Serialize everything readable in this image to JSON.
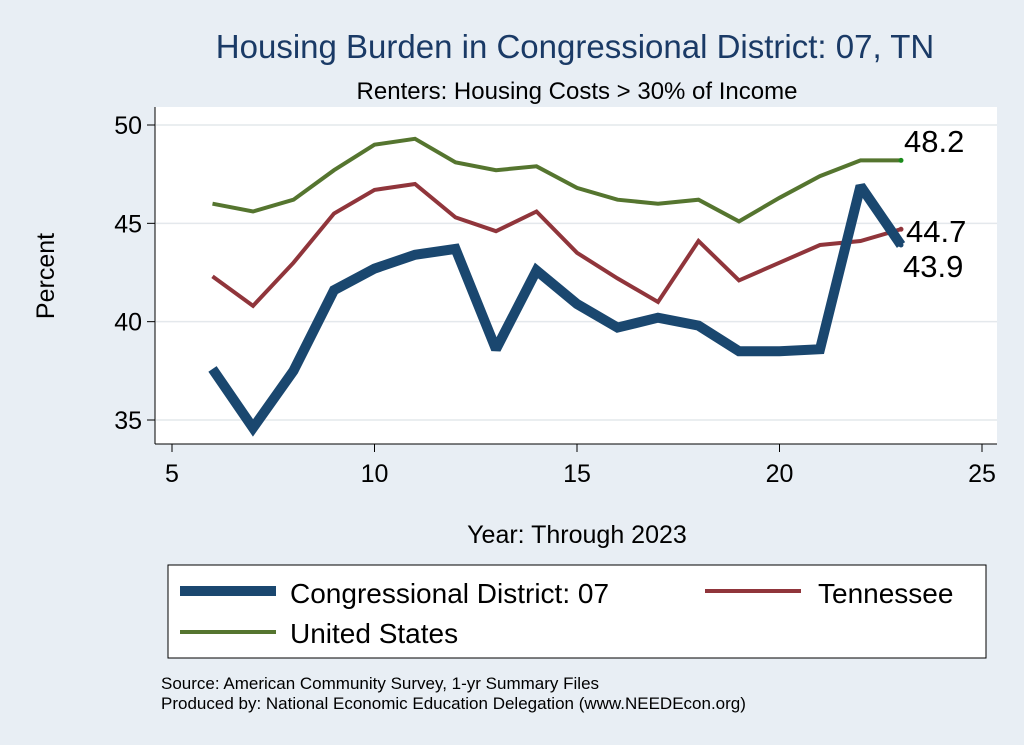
{
  "chart_data": {
    "type": "line",
    "title": "Housing Burden in Congressional District:  07, TN",
    "subtitle": "Renters: Housing Costs > 30% of Income",
    "xlabel": "Year: Through 2023",
    "ylabel": "Percent",
    "xlim": [
      5,
      25
    ],
    "ylim": [
      35,
      50
    ],
    "xticks": [
      5,
      10,
      15,
      20,
      25
    ],
    "yticks": [
      35,
      40,
      45,
      50
    ],
    "grid": true,
    "series": [
      {
        "name": "Congressional District:  07",
        "color": "#1a476f",
        "x": [
          6,
          7,
          8,
          9,
          10,
          11,
          12,
          13,
          14,
          15,
          16,
          17,
          18,
          19,
          20,
          21,
          22,
          23
        ],
        "values": [
          37.6,
          34.6,
          37.5,
          41.6,
          42.7,
          43.4,
          43.7,
          38.6,
          42.6,
          40.9,
          39.7,
          40.2,
          39.8,
          38.5,
          38.5,
          38.6,
          46.9,
          43.9
        ],
        "end_label": "43.9"
      },
      {
        "name": "Tennessee",
        "color": "#90353b",
        "x": [
          6,
          7,
          8,
          9,
          10,
          11,
          12,
          13,
          14,
          15,
          16,
          17,
          18,
          19,
          20,
          21,
          22,
          23
        ],
        "values": [
          42.3,
          40.8,
          43.0,
          45.5,
          46.7,
          47.0,
          45.3,
          44.6,
          45.6,
          43.5,
          42.2,
          41.0,
          44.1,
          42.1,
          43.0,
          43.9,
          44.1,
          44.7
        ],
        "end_label": "44.7"
      },
      {
        "name": "United States",
        "color": "#55752f",
        "x": [
          6,
          7,
          8,
          9,
          10,
          11,
          12,
          13,
          14,
          15,
          16,
          17,
          18,
          19,
          20,
          21,
          22,
          23
        ],
        "values": [
          46.0,
          45.6,
          46.2,
          47.7,
          49.0,
          49.3,
          48.1,
          47.7,
          47.9,
          46.8,
          46.2,
          46.0,
          46.2,
          45.1,
          46.3,
          47.4,
          48.2,
          48.2
        ],
        "end_label": "48.2"
      }
    ],
    "source_lines": [
      "Source: American Community Survey, 1-yr Summary Files",
      "Produced by: National Economic Education Delegation (www.NEEDEcon.org)"
    ]
  }
}
